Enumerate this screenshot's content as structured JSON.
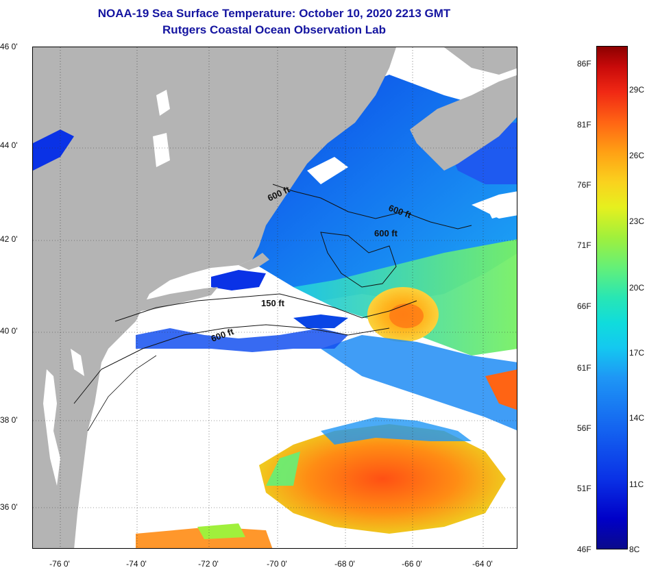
{
  "header": {
    "title_line1": "NOAA-19 Sea Surface Temperature:  October 10, 2020 2213 GMT",
    "title_line2": "Rutgers Coastal Ocean Observation Lab"
  },
  "map": {
    "latitude_labels": [
      "46 0'",
      "44 0'",
      "42 0'",
      "40 0'",
      "38 0'",
      "36 0'"
    ],
    "longitude_labels": [
      "-76 0'",
      "-74 0'",
      "-72 0'",
      "-70 0'",
      "-68 0'",
      "-66 0'",
      "-64 0'"
    ],
    "contour_labels": {
      "c600_west": "600 ft",
      "c600_east": "600 ft",
      "c600_center": "600 ft",
      "c150": "150 ft",
      "c600_south": "600 ft"
    },
    "colors": {
      "land": "#b4b4b4",
      "cloud": "#ffffff",
      "cold": "#1464f0",
      "warm": "#ff6414"
    }
  },
  "colorbar": {
    "fahrenheit_labels": [
      "86F",
      "81F",
      "76F",
      "71F",
      "66F",
      "61F",
      "56F",
      "51F",
      "46F"
    ],
    "celsius_labels": [
      "29C",
      "26C",
      "23C",
      "20C",
      "17C",
      "14C",
      "11C",
      "8C"
    ]
  }
}
